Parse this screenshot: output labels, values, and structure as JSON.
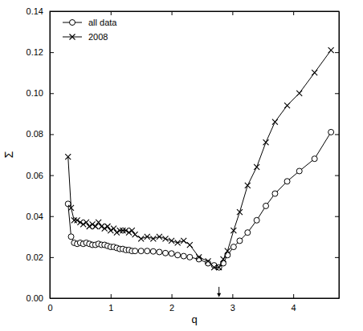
{
  "chart_data": {
    "type": "line",
    "x_label": "q",
    "y_label": "Σ",
    "x": [
      0.3,
      0.35,
      0.4,
      0.45,
      0.5,
      0.55,
      0.6,
      0.65,
      0.7,
      0.75,
      0.8,
      0.85,
      0.9,
      0.95,
      1.0,
      1.05,
      1.1,
      1.15,
      1.2,
      1.25,
      1.3,
      1.35,
      1.4,
      1.5,
      1.6,
      1.7,
      1.8,
      1.9,
      2.0,
      2.1,
      2.2,
      2.3,
      2.45,
      2.6,
      2.7,
      2.78,
      2.85,
      2.92,
      3.02,
      3.12,
      3.25,
      3.4,
      3.55,
      3.7,
      3.9,
      4.1,
      4.35,
      4.62
    ],
    "series": [
      {
        "name": "all data",
        "color": "#000000",
        "marker": "circle",
        "line_style": "solid",
        "values": [
          0.046,
          0.03,
          0.027,
          0.0265,
          0.027,
          0.0265,
          0.027,
          0.0265,
          0.026,
          0.026,
          0.0265,
          0.026,
          0.026,
          0.0255,
          0.025,
          0.025,
          0.0245,
          0.024,
          0.024,
          0.0235,
          0.0235,
          0.023,
          0.023,
          0.023,
          0.023,
          0.0228,
          0.0225,
          0.022,
          0.0218,
          0.021,
          0.0205,
          0.02,
          0.019,
          0.017,
          0.016,
          0.015,
          0.017,
          0.021,
          0.025,
          0.028,
          0.032,
          0.038,
          0.045,
          0.051,
          0.057,
          0.062,
          0.068,
          0.081
        ]
      },
      {
        "name": "2008",
        "color": "#000000",
        "marker": "cross",
        "line_style": "solid",
        "values": [
          0.069,
          0.044,
          0.038,
          0.038,
          0.037,
          0.036,
          0.037,
          0.035,
          0.036,
          0.035,
          0.037,
          0.035,
          0.034,
          0.035,
          0.033,
          0.034,
          0.032,
          0.033,
          0.033,
          0.033,
          0.032,
          0.033,
          0.031,
          0.029,
          0.03,
          0.029,
          0.03,
          0.029,
          0.028,
          0.027,
          0.028,
          0.026,
          0.02,
          0.018,
          0.015,
          0.015,
          0.019,
          0.023,
          0.033,
          0.042,
          0.055,
          0.064,
          0.076,
          0.086,
          0.094,
          0.1,
          0.11,
          0.121
        ]
      }
    ],
    "xlim": [
      0,
      4.75
    ],
    "ylim": [
      0,
      0.14
    ],
    "xticks": [
      0,
      1,
      2,
      3,
      4
    ],
    "yticks": [
      {
        "value": 0,
        "label": "0.00"
      },
      0.02,
      0.04,
      0.06,
      0.08,
      {
        "value": 0.1,
        "label": "0.10"
      },
      0.12,
      0.14
    ],
    "legend": "top-left",
    "grid": false,
    "annotations": [
      {
        "type": "arrow",
        "x": 2.78,
        "y_start": 0.0055,
        "y_end": 0.0005
      }
    ]
  }
}
